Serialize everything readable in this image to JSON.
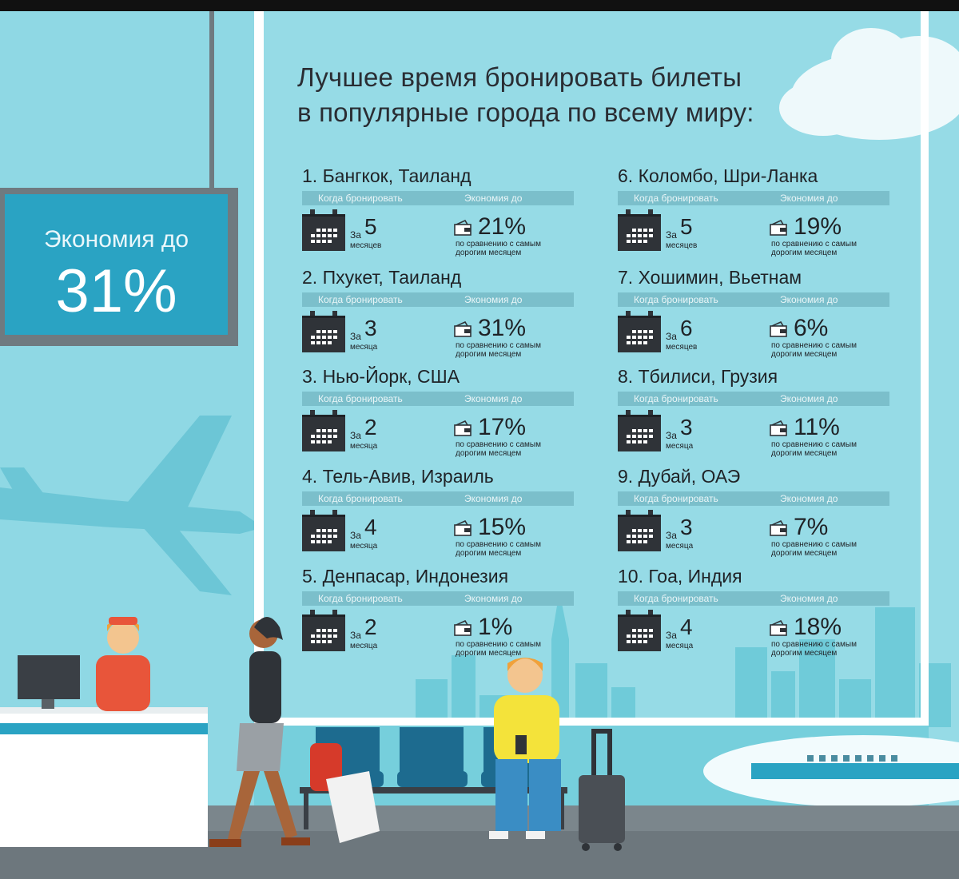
{
  "title": {
    "line1": "Лучшее время бронировать билеты",
    "line2": "в популярные города по всему миру:"
  },
  "sign": {
    "label": "Экономия до",
    "value": "31%"
  },
  "labels": {
    "when": "Когда бронировать",
    "saving": "Экономия до",
    "za": "За",
    "compare": "по сравнению с самым дорогим месяцем"
  },
  "cities": [
    {
      "name": "1. Бангкок, Таиланд",
      "months": "5",
      "months_word": "месяцев",
      "saving": "21%"
    },
    {
      "name": "2. Пхукет, Таиланд",
      "months": "3",
      "months_word": "месяца",
      "saving": "31%"
    },
    {
      "name": "3. Нью-Йорк, США",
      "months": "2",
      "months_word": "месяца",
      "saving": "17%"
    },
    {
      "name": "4. Тель-Авив, Израиль",
      "months": "4",
      "months_word": "месяца",
      "saving": "15%"
    },
    {
      "name": "5. Денпасар, Индонезия",
      "months": "2",
      "months_word": "месяца",
      "saving": "1%"
    },
    {
      "name": "6. Коломбо, Шри-Ланка",
      "months": "5",
      "months_word": "месяцев",
      "saving": "19%"
    },
    {
      "name": "7. Хошимин, Вьетнам",
      "months": "6",
      "months_word": "месяцев",
      "saving": "6%"
    },
    {
      "name": "8. Тбилиси, Грузия",
      "months": "3",
      "months_word": "месяца",
      "saving": "11%"
    },
    {
      "name": "9. Дубай, ОАЭ",
      "months": "3",
      "months_word": "месяца",
      "saving": "7%"
    },
    {
      "name": "10. Гоа, Индия",
      "months": "4",
      "months_word": "месяца",
      "saving": "18%"
    }
  ],
  "colors": {
    "sky": "#96dbe6",
    "wall": "#5fc3d4",
    "sign": "#2aa3c3",
    "bar": "#7bbfcb",
    "calendar": "#2f3338"
  }
}
